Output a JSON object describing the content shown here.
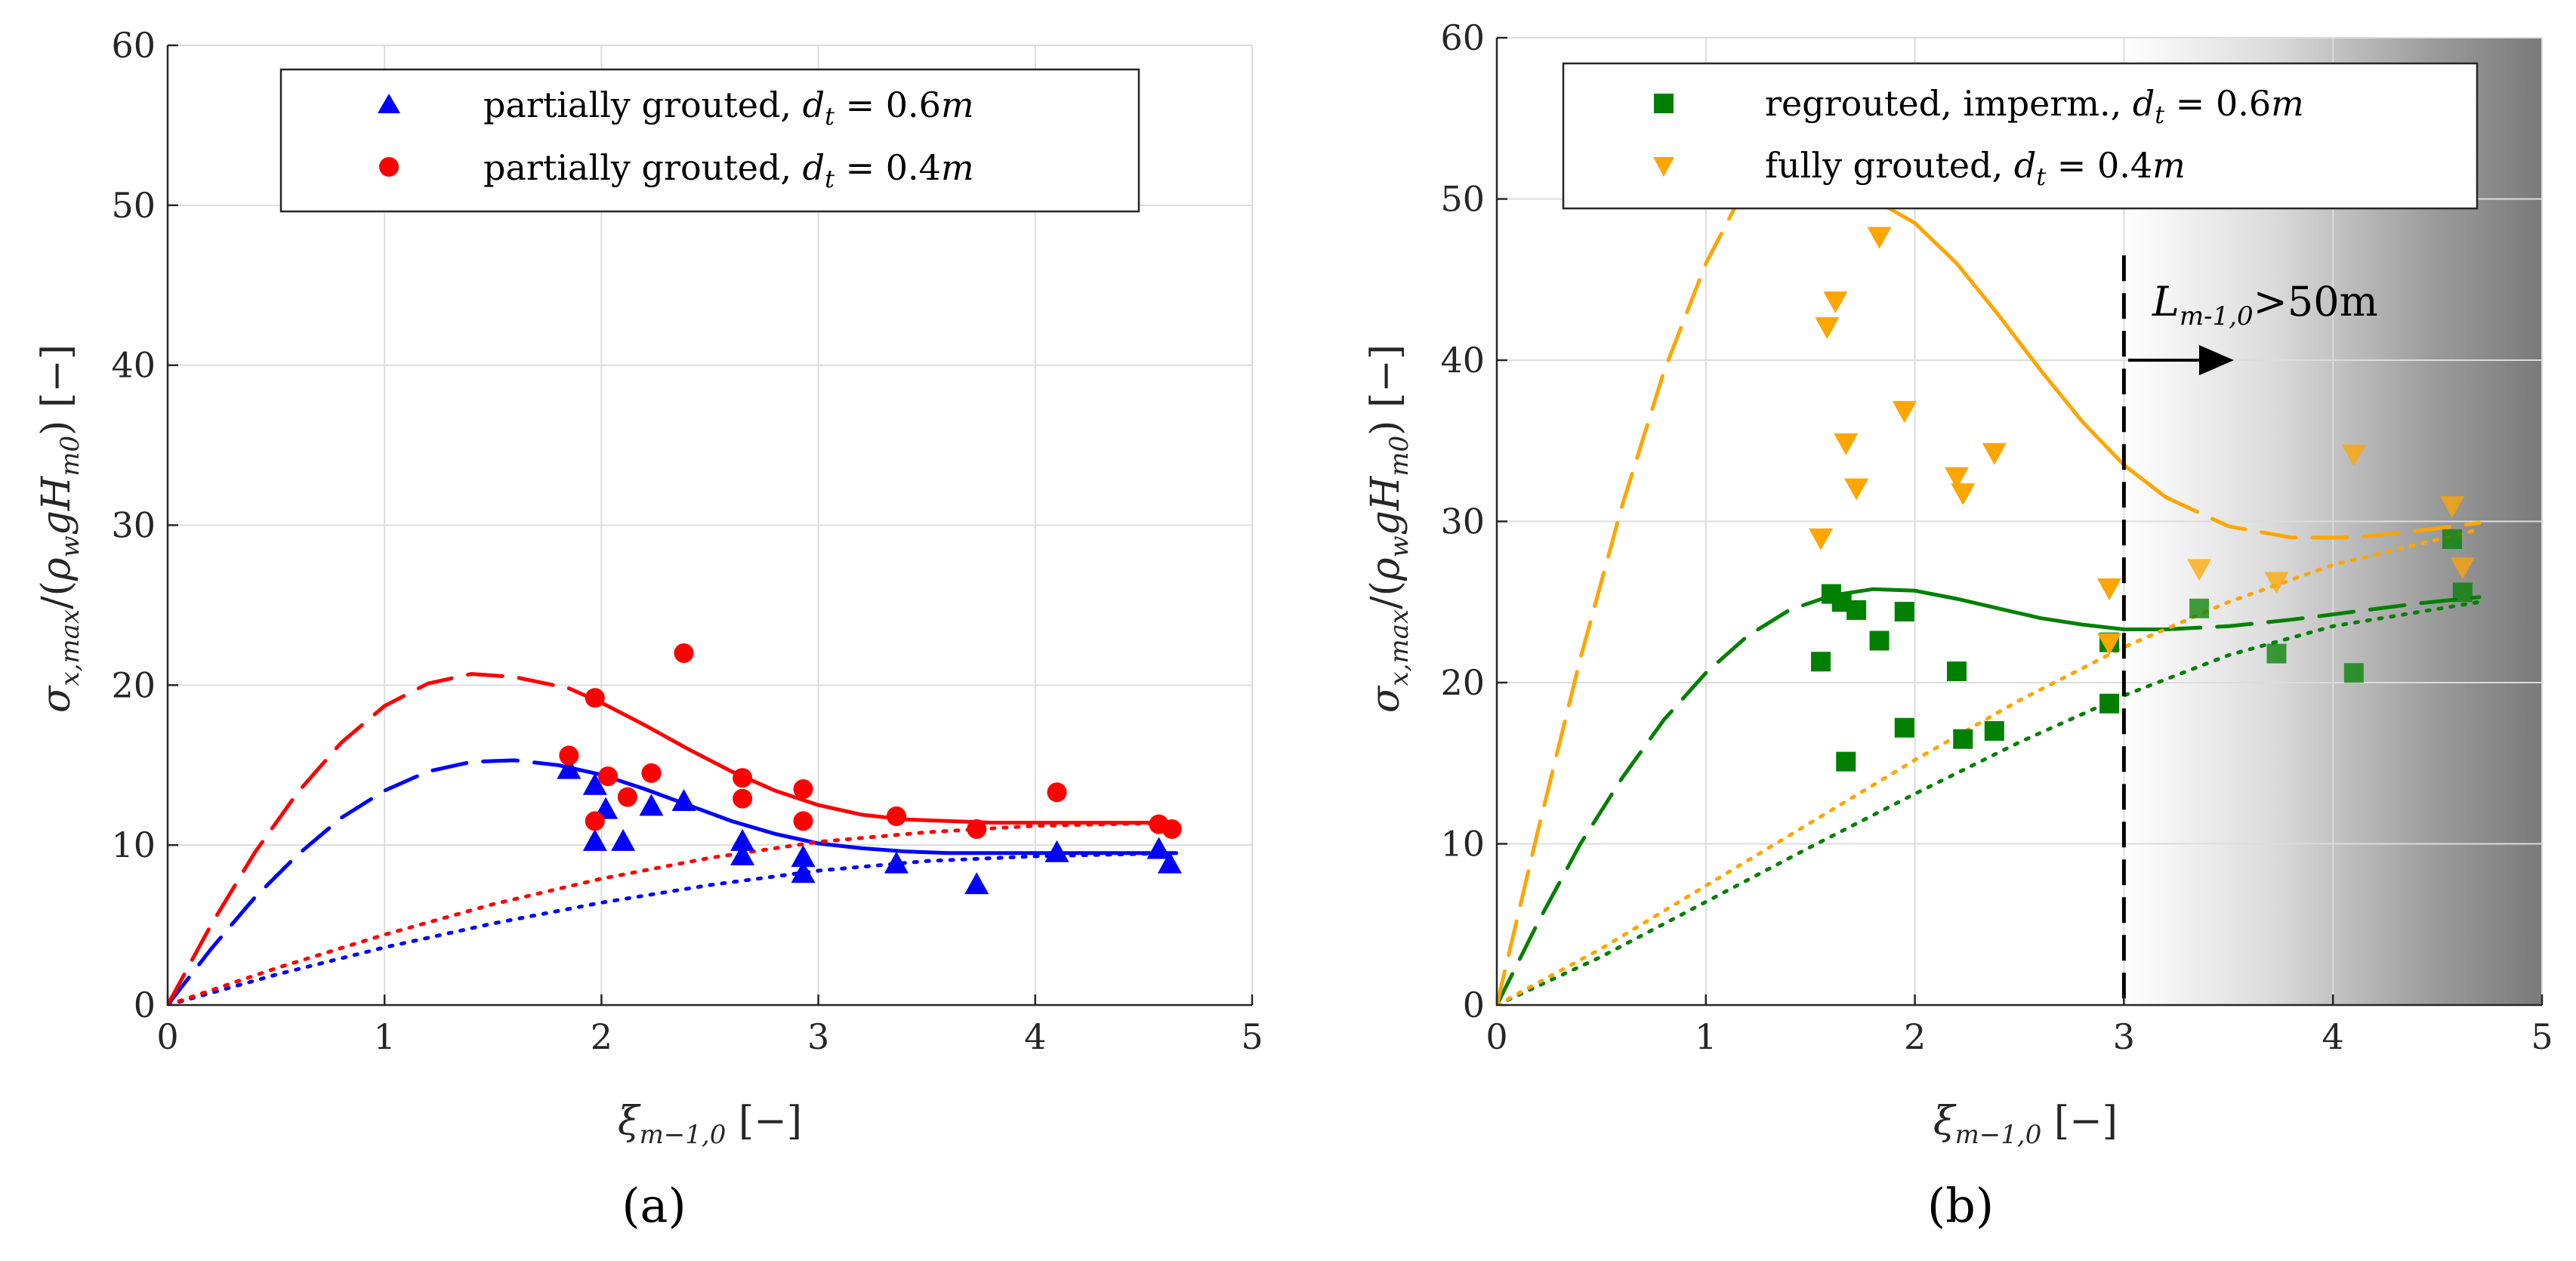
{
  "chart_data": [
    {
      "type": "scatter",
      "panel_label": "(a)",
      "xlabel": "ξ_{m−1,0} [−]",
      "ylabel": "σ_{x,max}/(ρ_w g H_{m0}) [−]",
      "xlim": [
        0,
        5
      ],
      "ylim": [
        0,
        60
      ],
      "xticks": [
        "0",
        "1",
        "2",
        "3",
        "4",
        "5"
      ],
      "yticks": [
        "0",
        "10",
        "20",
        "30",
        "40",
        "50",
        "60"
      ],
      "grid": true,
      "legend_position": "top-right",
      "series": [
        {
          "name": "partially grouted, d_t = 0.6m",
          "legend_text": "partially grouted, ",
          "legend_math": "d",
          "legend_math_sub": "t",
          "legend_value": " = 0.6",
          "legend_unit": "m",
          "color": "#0000ff",
          "marker": "triangle-up",
          "points": [
            [
              1.85,
              14.7
            ],
            [
              1.97,
              13.7
            ],
            [
              1.97,
              10.2
            ],
            [
              2.02,
              12.2
            ],
            [
              2.1,
              10.2
            ],
            [
              2.23,
              12.4
            ],
            [
              2.38,
              12.7
            ],
            [
              2.65,
              9.3
            ],
            [
              2.65,
              10.2
            ],
            [
              2.93,
              8.2
            ],
            [
              2.93,
              9.2
            ],
            [
              3.36,
              8.8
            ],
            [
              3.73,
              7.5
            ],
            [
              4.1,
              9.5
            ],
            [
              4.57,
              9.7
            ],
            [
              4.62,
              8.8
            ]
          ],
          "fit_dashed": [
            [
              0,
              0
            ],
            [
              0.2,
              3.5
            ],
            [
              0.4,
              6.7
            ],
            [
              0.6,
              9.4
            ],
            [
              0.8,
              11.7
            ],
            [
              1.0,
              13.4
            ],
            [
              1.2,
              14.6
            ],
            [
              1.4,
              15.2
            ],
            [
              1.6,
              15.3
            ],
            [
              1.8,
              15.0
            ]
          ],
          "fit_solid": [
            [
              1.8,
              15.0
            ],
            [
              2.0,
              14.4
            ],
            [
              2.2,
              13.5
            ],
            [
              2.4,
              12.5
            ],
            [
              2.6,
              11.5
            ],
            [
              2.8,
              10.7
            ],
            [
              3.0,
              10.1
            ],
            [
              3.2,
              9.8
            ],
            [
              3.4,
              9.6
            ],
            [
              3.6,
              9.5
            ],
            [
              3.8,
              9.5
            ],
            [
              4.0,
              9.5
            ],
            [
              4.3,
              9.5
            ],
            [
              4.65,
              9.5
            ]
          ],
          "fit_dotted": [
            [
              0,
              0
            ],
            [
              0.5,
              1.9
            ],
            [
              1.0,
              3.6
            ],
            [
              1.5,
              5.1
            ],
            [
              2.0,
              6.4
            ],
            [
              2.5,
              7.5
            ],
            [
              3.0,
              8.4
            ],
            [
              3.5,
              9.0
            ],
            [
              4.0,
              9.3
            ],
            [
              4.65,
              9.5
            ]
          ]
        },
        {
          "name": "partially grouted, d_t = 0.4m",
          "legend_text": "partially grouted, ",
          "legend_math": "d",
          "legend_math_sub": "t",
          "legend_value": " = 0.4",
          "legend_unit": "m",
          "color": "#ff0000",
          "marker": "circle",
          "points": [
            [
              1.85,
              15.6
            ],
            [
              1.97,
              19.2
            ],
            [
              1.97,
              11.5
            ],
            [
              2.03,
              14.3
            ],
            [
              2.12,
              13.0
            ],
            [
              2.23,
              14.5
            ],
            [
              2.38,
              22.0
            ],
            [
              2.65,
              14.2
            ],
            [
              2.65,
              12.9
            ],
            [
              2.93,
              13.5
            ],
            [
              2.93,
              11.5
            ],
            [
              3.36,
              11.8
            ],
            [
              3.73,
              11.0
            ],
            [
              4.1,
              13.3
            ],
            [
              4.57,
              11.3
            ],
            [
              4.63,
              11.0
            ]
          ],
          "fit_dashed": [
            [
              0,
              0
            ],
            [
              0.2,
              5.0
            ],
            [
              0.4,
              9.5
            ],
            [
              0.6,
              13.3
            ],
            [
              0.8,
              16.4
            ],
            [
              1.0,
              18.7
            ],
            [
              1.2,
              20.1
            ],
            [
              1.4,
              20.7
            ],
            [
              1.6,
              20.5
            ],
            [
              1.85,
              19.8
            ]
          ],
          "fit_solid": [
            [
              1.85,
              19.8
            ],
            [
              2.0,
              18.9
            ],
            [
              2.2,
              17.5
            ],
            [
              2.4,
              16.0
            ],
            [
              2.6,
              14.6
            ],
            [
              2.8,
              13.4
            ],
            [
              3.0,
              12.5
            ],
            [
              3.2,
              11.9
            ],
            [
              3.4,
              11.6
            ],
            [
              3.6,
              11.5
            ],
            [
              3.8,
              11.4
            ],
            [
              4.0,
              11.4
            ],
            [
              4.3,
              11.4
            ],
            [
              4.65,
              11.4
            ]
          ],
          "fit_dotted": [
            [
              0,
              0
            ],
            [
              0.5,
              2.3
            ],
            [
              1.0,
              4.4
            ],
            [
              1.5,
              6.3
            ],
            [
              2.0,
              7.9
            ],
            [
              2.5,
              9.2
            ],
            [
              3.0,
              10.2
            ],
            [
              3.5,
              10.8
            ],
            [
              4.0,
              11.2
            ],
            [
              4.65,
              11.4
            ]
          ]
        }
      ]
    },
    {
      "type": "scatter",
      "panel_label": "(b)",
      "xlabel": "ξ_{m−1,0} [−]",
      "ylabel": "σ_{x,max}/(ρ_w g H_{m0}) [−]",
      "xlim": [
        0,
        5
      ],
      "ylim": [
        0,
        60
      ],
      "xticks": [
        "0",
        "1",
        "2",
        "3",
        "4",
        "5"
      ],
      "yticks": [
        "0",
        "10",
        "20",
        "30",
        "40",
        "50",
        "60"
      ],
      "grid": true,
      "legend_position": "top",
      "shaded_region_x": [
        3,
        5
      ],
      "vline_x": 3,
      "annotation": {
        "main": "L",
        "sub": "m-1,0",
        "tail": ">50m"
      },
      "series": [
        {
          "name": "regrouted, imperm., d_t = 0.6m",
          "legend_text": "regrouted, imperm., ",
          "legend_math": "d",
          "legend_math_sub": "t",
          "legend_value": " = 0.6",
          "legend_unit": "m",
          "color": "#008000",
          "marker": "square",
          "points": [
            [
              1.55,
              21.3
            ],
            [
              1.6,
              25.5
            ],
            [
              1.65,
              25.0
            ],
            [
              1.67,
              15.1
            ],
            [
              1.72,
              24.5
            ],
            [
              1.83,
              22.6
            ],
            [
              1.95,
              17.2
            ],
            [
              1.95,
              24.4
            ],
            [
              2.2,
              20.7
            ],
            [
              2.23,
              16.5
            ],
            [
              2.38,
              17.0
            ],
            [
              2.93,
              18.7
            ],
            [
              2.93,
              22.5
            ],
            [
              3.36,
              24.6
            ],
            [
              3.73,
              21.8
            ],
            [
              4.1,
              20.6
            ],
            [
              4.57,
              28.9
            ],
            [
              4.62,
              25.6
            ]
          ],
          "fit_dashed": [
            [
              0,
              0
            ],
            [
              0.2,
              5.2
            ],
            [
              0.4,
              10.0
            ],
            [
              0.6,
              14.1
            ],
            [
              0.8,
              17.7
            ],
            [
              1.0,
              20.6
            ],
            [
              1.2,
              22.9
            ],
            [
              1.4,
              24.5
            ],
            [
              1.6,
              25.4
            ]
          ],
          "fit_solid": [
            [
              1.6,
              25.4
            ],
            [
              1.8,
              25.8
            ],
            [
              2.0,
              25.7
            ],
            [
              2.2,
              25.2
            ],
            [
              2.4,
              24.6
            ],
            [
              2.6,
              24.0
            ],
            [
              2.8,
              23.6
            ],
            [
              3.0,
              23.3
            ],
            [
              3.2,
              23.3
            ]
          ],
          "fit_dashed_tail": [
            [
              3.2,
              23.3
            ],
            [
              3.5,
              23.5
            ],
            [
              3.8,
              23.9
            ],
            [
              4.1,
              24.4
            ],
            [
              4.4,
              24.9
            ],
            [
              4.7,
              25.3
            ]
          ],
          "fit_dotted": [
            [
              0,
              0
            ],
            [
              0.5,
              3.0
            ],
            [
              1.0,
              6.4
            ],
            [
              1.5,
              9.8
            ],
            [
              2.0,
              13.1
            ],
            [
              2.5,
              16.3
            ],
            [
              3.0,
              19.2
            ],
            [
              3.5,
              21.7
            ],
            [
              4.0,
              23.5
            ],
            [
              4.7,
              25.0
            ]
          ]
        },
        {
          "name": "fully grouted, d_t = 0.4m",
          "legend_text": "fully grouted, ",
          "legend_math": "d",
          "legend_math_sub": "t",
          "legend_value": " = 0.4",
          "legend_unit": "m",
          "color": "#ffa500",
          "marker": "triangle-down",
          "points": [
            [
              1.55,
              29.0
            ],
            [
              1.58,
              42.1
            ],
            [
              1.62,
              43.7
            ],
            [
              1.67,
              34.9
            ],
            [
              1.72,
              32.1
            ],
            [
              1.83,
              47.7
            ],
            [
              1.95,
              36.9
            ],
            [
              2.2,
              32.8
            ],
            [
              2.23,
              31.8
            ],
            [
              2.38,
              34.3
            ],
            [
              2.93,
              25.9
            ],
            [
              2.93,
              22.5
            ],
            [
              3.36,
              27.1
            ],
            [
              3.73,
              26.3
            ],
            [
              4.1,
              34.2
            ],
            [
              4.57,
              31.0
            ],
            [
              4.62,
              27.2
            ]
          ],
          "fit_dashed": [
            [
              0,
              0
            ],
            [
              0.2,
              11.0
            ],
            [
              0.4,
              21.5
            ],
            [
              0.6,
              31.0
            ],
            [
              0.8,
              39.3
            ],
            [
              1.0,
              46.0
            ],
            [
              1.2,
              51.0
            ]
          ],
          "fit_solid": [
            [
              1.8,
              50.0
            ],
            [
              2.0,
              48.5
            ],
            [
              2.2,
              46.0
            ],
            [
              2.4,
              42.8
            ],
            [
              2.6,
              39.4
            ],
            [
              2.8,
              36.2
            ],
            [
              3.0,
              33.5
            ],
            [
              3.2,
              31.5
            ]
          ],
          "fit_dashed_tail": [
            [
              3.2,
              31.5
            ],
            [
              3.5,
              29.7
            ],
            [
              3.8,
              29.0
            ],
            [
              4.1,
              29.0
            ],
            [
              4.4,
              29.4
            ],
            [
              4.7,
              29.9
            ]
          ],
          "fit_dotted": [
            [
              0,
              0
            ],
            [
              0.5,
              3.5
            ],
            [
              1.0,
              7.4
            ],
            [
              1.5,
              11.3
            ],
            [
              2.0,
              15.2
            ],
            [
              2.5,
              18.9
            ],
            [
              3.0,
              22.2
            ],
            [
              3.5,
              25.0
            ],
            [
              4.0,
              27.3
            ],
            [
              4.7,
              29.5
            ]
          ]
        }
      ]
    }
  ]
}
